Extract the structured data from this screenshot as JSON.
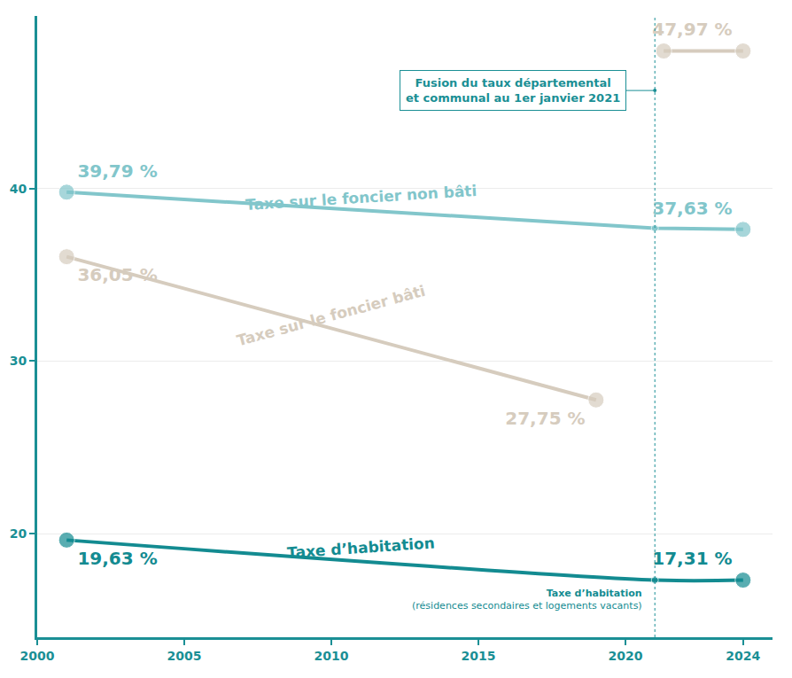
{
  "chart_data": {
    "type": "line",
    "xlim": [
      2000,
      2025
    ],
    "xticks": [
      2000,
      2005,
      2010,
      2015,
      2020,
      2024
    ],
    "ylim": [
      14,
      50
    ],
    "yticks": [
      20,
      30,
      40
    ],
    "grid": true,
    "data_labels": true,
    "series": [
      {
        "name": "Taxe sur le foncier non bâti",
        "color": "#82c6cb",
        "x": [
          2001,
          2021,
          2024
        ],
        "values": [
          39.79,
          37.7,
          37.63
        ],
        "value_labels": [
          "39,79 %",
          null,
          "37,63 %"
        ]
      },
      {
        "name": "Taxe sur le foncier bâti",
        "color": "#d6ccbe",
        "x": [
          2001,
          2019,
          2020.5,
          2021.3,
          2024
        ],
        "values": [
          36.05,
          27.75,
          null,
          47.97,
          47.97
        ],
        "value_labels": [
          "36,05 %",
          "27,75 %",
          null,
          null,
          "47,97 %"
        ]
      },
      {
        "name": "Taxe d’habitation",
        "color": "#138b91",
        "line_style": "spline",
        "x": [
          2001,
          2021,
          2024
        ],
        "values": [
          19.63,
          17.31,
          17.31
        ],
        "value_labels": [
          "19,63 %",
          null,
          "17,31 %"
        ],
        "note": [
          "Taxe d’habitation",
          "(résidences secondaires et logements vacants)"
        ]
      }
    ],
    "annotations": [
      {
        "text": [
          "Fusion du taux départemental",
          "et communal au 1er janvier 2021"
        ],
        "x": 2021
      }
    ]
  }
}
